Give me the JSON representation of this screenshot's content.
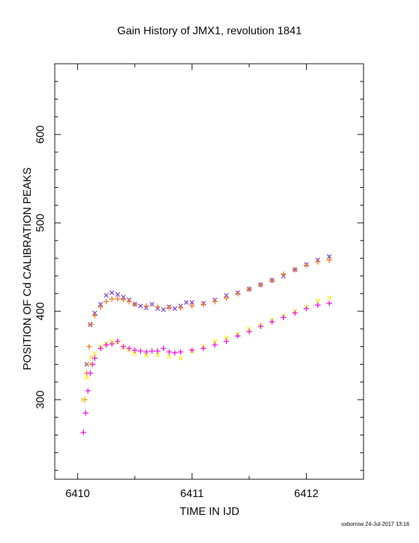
{
  "chart_data": {
    "type": "scatter",
    "title": "Gain History of JMX1, revolution 1841",
    "xlabel": "TIME IN IJD",
    "ylabel": "POSITION OF Cd CALIBRATION PEAKS",
    "xlim": [
      6409.8,
      6412.5
    ],
    "ylim": [
      210,
      680
    ],
    "x_ticks": [
      6410,
      6411,
      6412
    ],
    "x_tick_labels": [
      "6410",
      "6411",
      "6412"
    ],
    "y_ticks": [
      300,
      400,
      500,
      600
    ],
    "y_tick_labels": [
      "300",
      "400",
      "500",
      "600"
    ],
    "grid": false,
    "legend": "none",
    "series": [
      {
        "marker": "x",
        "color": "#7f3fd6",
        "x": [
          6410.05,
          6410.08,
          6410.11,
          6410.15,
          6410.2,
          6410.25,
          6410.3,
          6410.35,
          6410.4,
          6410.45,
          6410.5,
          6410.55,
          6410.6,
          6410.65,
          6410.7,
          6410.75,
          6410.8,
          6410.85,
          6410.9,
          6410.95,
          6411.0,
          6411.1,
          6411.2,
          6411.3,
          6411.4,
          6411.5,
          6411.6,
          6411.7,
          6411.8,
          6411.9,
          6412.0,
          6412.1,
          6412.2
        ],
        "y": [
          300,
          340,
          385,
          398,
          408,
          418,
          421,
          419,
          416,
          413,
          408,
          406,
          404,
          408,
          403,
          402,
          405,
          403,
          406,
          410,
          410,
          409,
          413,
          418,
          421,
          425,
          430,
          435,
          440,
          447,
          453,
          458,
          462
        ]
      },
      {
        "marker": "+",
        "color": "#f07820",
        "x": [
          6410.06,
          6410.08,
          6410.1,
          6410.12,
          6410.15,
          6410.2,
          6410.25,
          6410.3,
          6410.35,
          6410.4,
          6410.45,
          6410.5,
          6410.6,
          6410.7,
          6410.8,
          6410.9,
          6411.0,
          6411.1,
          6411.2,
          6411.3,
          6411.4,
          6411.5,
          6411.6,
          6411.7,
          6411.8,
          6411.9,
          6412.0,
          6412.1,
          6412.2
        ],
        "y": [
          300,
          330,
          360,
          385,
          395,
          405,
          411,
          414,
          414,
          413,
          411,
          408,
          406,
          405,
          404,
          404,
          406,
          408,
          411,
          415,
          420,
          425,
          430,
          435,
          442,
          447,
          452,
          456,
          458
        ]
      },
      {
        "marker": "x",
        "color": "#f5f020",
        "x": [
          6410.05,
          6410.08,
          6410.1,
          6410.12,
          6410.15,
          6410.2,
          6410.25,
          6410.3,
          6410.35,
          6410.4,
          6410.45,
          6410.5,
          6410.6,
          6410.7,
          6410.8,
          6410.9,
          6411.0,
          6411.1,
          6411.2,
          6411.3,
          6411.4,
          6411.5,
          6411.6,
          6411.7,
          6411.8,
          6411.9,
          6412.0,
          6412.1,
          6412.2
        ],
        "y": [
          300,
          325,
          340,
          348,
          352,
          360,
          363,
          366,
          365,
          359,
          356,
          352,
          350,
          351,
          349,
          347,
          355,
          360,
          366,
          370,
          374,
          380,
          384,
          390,
          395,
          400,
          405,
          412,
          415
        ]
      },
      {
        "marker": "+",
        "color": "#f012e0",
        "x": [
          6410.05,
          6410.07,
          6410.09,
          6410.11,
          6410.13,
          6410.15,
          6410.2,
          6410.25,
          6410.3,
          6410.35,
          6410.4,
          6410.45,
          6410.5,
          6410.55,
          6410.6,
          6410.65,
          6410.7,
          6410.75,
          6410.8,
          6410.85,
          6410.9,
          6411.0,
          6411.1,
          6411.2,
          6411.3,
          6411.4,
          6411.5,
          6411.6,
          6411.7,
          6411.8,
          6411.9,
          6412.0,
          6412.1,
          6412.2
        ],
        "y": [
          263,
          285,
          310,
          330,
          340,
          347,
          358,
          362,
          363,
          366,
          360,
          358,
          356,
          355,
          354,
          355,
          355,
          358,
          354,
          353,
          354,
          356,
          358,
          362,
          366,
          372,
          377,
          383,
          388,
          393,
          398,
          403,
          407,
          409
        ]
      }
    ],
    "footer": "oxborrow 24-Jul-2017 13:16"
  }
}
